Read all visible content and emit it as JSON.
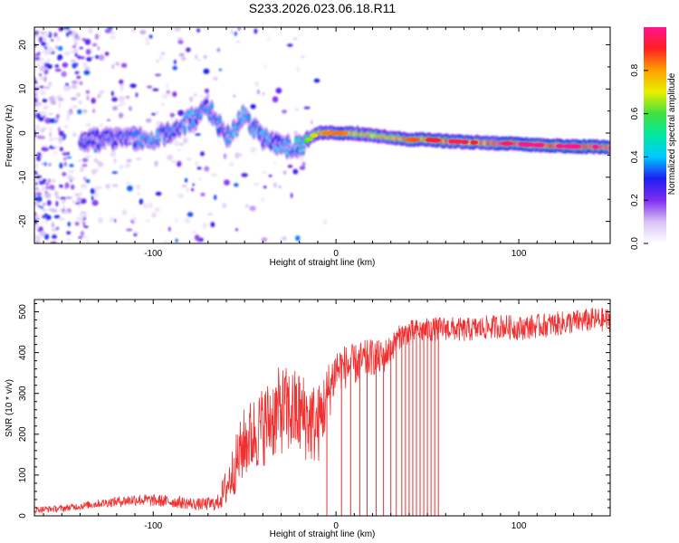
{
  "title": "S233.2026.023.06.18.R11",
  "colors": {
    "snr_line": "#f03030",
    "frame": "#000000",
    "background": "#ffffff"
  },
  "chart_data": [
    {
      "type": "heatmap",
      "title": "S233.2026.023.06.18.R11",
      "xlabel": "Height of straight line (km)",
      "ylabel": "Frequency (Hz)",
      "xlim": [
        -165,
        150
      ],
      "ylim": [
        -25,
        24
      ],
      "xticks": [
        -100,
        0,
        100
      ],
      "yticks": [
        20,
        10,
        0,
        -10,
        -20
      ],
      "colorbar": {
        "label": "Normalized spectral amplitude",
        "range": [
          0,
          1
        ],
        "ticks": [
          0.0,
          0.2,
          0.4,
          0.6,
          0.8
        ],
        "colors": [
          "#ffffff",
          "#d9c2f5",
          "#7d2ef0",
          "#1e1ef0",
          "#00c8ff",
          "#00e8a0",
          "#40e040",
          "#e8f000",
          "#ffa000",
          "#ff2020",
          "#ff1490"
        ]
      },
      "ridge": {
        "x": [
          -140,
          -120,
          -100,
          -90,
          -80,
          -70,
          -60,
          -50,
          -40,
          -30,
          -20,
          -10,
          0,
          10,
          20,
          30,
          40,
          50,
          60,
          70,
          80,
          90,
          100,
          110,
          120,
          130,
          140,
          150
        ],
        "freq": [
          -1.5,
          -1.5,
          -1,
          0,
          3,
          6,
          -1,
          4,
          -1,
          -3,
          -3,
          0,
          0,
          0,
          -0.5,
          -1,
          -1.5,
          -1.5,
          -1.8,
          -2,
          -2.2,
          -2.3,
          -2.5,
          -2.7,
          -2.9,
          -3,
          -3.1,
          -3.2
        ],
        "amplitude": [
          0.3,
          0.3,
          0.35,
          0.35,
          0.35,
          0.35,
          0.35,
          0.4,
          0.35,
          0.35,
          0.4,
          0.75,
          0.8,
          0.75,
          0.7,
          0.75,
          0.8,
          0.85,
          0.9,
          0.88,
          0.85,
          0.9,
          0.95,
          0.95,
          0.95,
          0.95,
          0.95,
          0.98
        ]
      }
    },
    {
      "type": "line",
      "xlabel": "Height of straight line (km)",
      "ylabel": "SNR (10 * v/v)",
      "xlim": [
        -165,
        150
      ],
      "ylim": [
        0,
        530
      ],
      "xticks": [
        -100,
        0,
        100
      ],
      "yticks": [
        0,
        100,
        200,
        300,
        400,
        500
      ],
      "series": [
        {
          "name": "SNR",
          "x": [
            -165,
            -150,
            -130,
            -110,
            -90,
            -75,
            -65,
            -60,
            -50,
            -40,
            -30,
            -20,
            -10,
            0,
            10,
            15,
            20,
            25,
            30,
            35,
            40,
            50,
            60,
            70,
            80,
            90,
            100,
            110,
            120,
            130,
            140,
            150
          ],
          "y": [
            15,
            18,
            30,
            40,
            35,
            28,
            30,
            70,
            180,
            220,
            260,
            250,
            220,
            360,
            370,
            380,
            390,
            385,
            410,
            440,
            450,
            455,
            460,
            455,
            460,
            465,
            460,
            465,
            470,
            475,
            480,
            480
          ],
          "spread": [
            8,
            8,
            10,
            15,
            15,
            15,
            18,
            50,
            90,
            100,
            110,
            110,
            100,
            60,
            50,
            50,
            45,
            45,
            35,
            30,
            30,
            30,
            30,
            30,
            30,
            30,
            30,
            30,
            30,
            30,
            30,
            30
          ]
        }
      ],
      "dropouts": {
        "x": [
          -5,
          3,
          8,
          13,
          17,
          22,
          26,
          30,
          33,
          36,
          38,
          40,
          42,
          44,
          46,
          48,
          50,
          52,
          54,
          56
        ],
        "y": [
          0,
          0,
          0,
          0,
          0,
          0,
          0,
          0,
          0,
          0,
          0,
          0,
          0,
          0,
          0,
          0,
          0,
          0,
          0,
          0
        ]
      }
    }
  ]
}
